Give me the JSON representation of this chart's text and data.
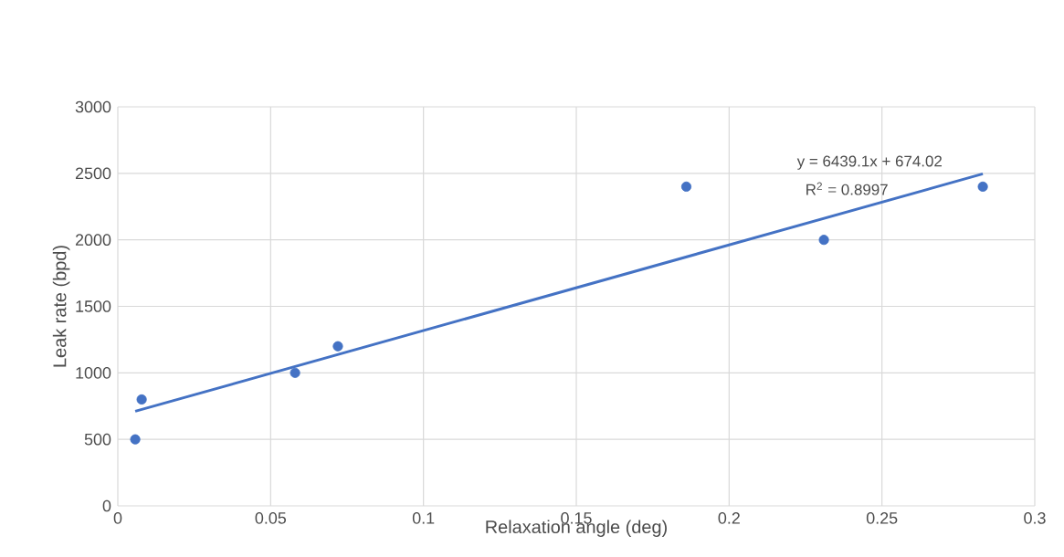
{
  "chart_data": {
    "type": "scatter",
    "xlabel": "Relaxation angle (deg)",
    "ylabel": "Leak rate (bpd)",
    "xlim": [
      0,
      0.3
    ],
    "xticks": [
      0,
      0.05,
      0.1,
      0.15,
      0.2,
      0.25,
      0.3
    ],
    "ylim": [
      0,
      3000
    ],
    "yticks": [
      0,
      500,
      1000,
      1500,
      2000,
      2500,
      3000
    ],
    "grid": true,
    "marker": "circle",
    "series": [
      {
        "color": "#4472c4",
        "x": [
          0.0057,
          0.0078,
          0.058,
          0.072,
          0.186,
          0.231,
          0.283
        ],
        "values": [
          500,
          800,
          1000,
          1200,
          2400,
          2000,
          2400
        ]
      },
      {
        "type": "line",
        "color": "#4472c4",
        "marker": "none",
        "x": [
          0.0057,
          0.283
        ],
        "values": [
          711,
          2496
        ]
      }
    ],
    "annotations": [
      "y = 6439.1x + 674.02",
      "R$^{2}$ = 0.8997"
    ]
  }
}
